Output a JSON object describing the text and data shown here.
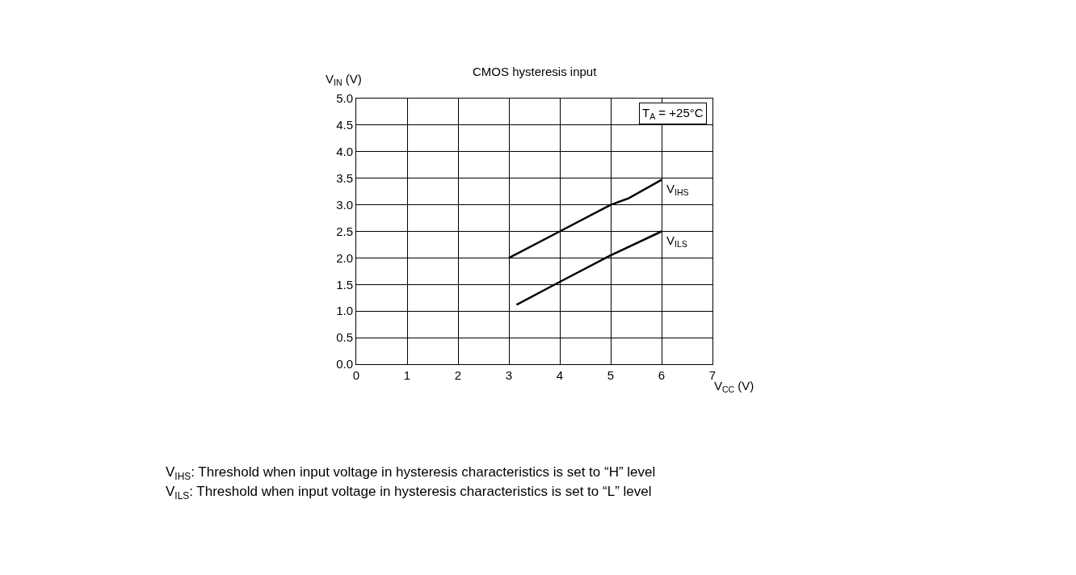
{
  "chart_data": {
    "type": "line",
    "title": "CMOS hysteresis input",
    "xlabel": "V$_{CC}$ (V)",
    "ylabel": "V$_{IN}$ (V)",
    "xlim": [
      0,
      7
    ],
    "xticks": [
      0,
      1,
      2,
      3,
      4,
      5,
      6,
      7
    ],
    "ylim": [
      0,
      5
    ],
    "yticks": [
      {
        "value": 0,
        "label": "0.0"
      },
      0.5,
      {
        "value": 1,
        "label": "1.0"
      },
      1.5,
      {
        "value": 2,
        "label": "2.0"
      },
      2.5,
      {
        "value": 3,
        "label": "3.0"
      },
      3.5,
      {
        "value": 4,
        "label": "4.0"
      },
      4.5,
      {
        "value": 5,
        "label": "5.0"
      }
    ],
    "series": [
      {
        "name": "V$_{IHS}$",
        "color": "#000000",
        "x": [
          3,
          4,
          5,
          5.35,
          6
        ],
        "values": [
          2.0,
          2.5,
          3.0,
          3.12,
          3.47
        ]
      },
      {
        "name": "V$_{ILS}$",
        "color": "#000000",
        "x": [
          3.15,
          4,
          5,
          6
        ],
        "values": [
          1.12,
          1.55,
          2.05,
          2.5
        ]
      }
    ],
    "annotations": [
      "T$_{A}$ = +25°C",
      "V$_{IHS}$: Threshold when input voltage in hysteresis characteristics is set to “H” level",
      "V$_{ILS}$: Threshold when input voltage in hysteresis characteristics is set to “L” level"
    ],
    "grid": true,
    "legend": false,
    "marker": "none",
    "line_style": "solid"
  }
}
